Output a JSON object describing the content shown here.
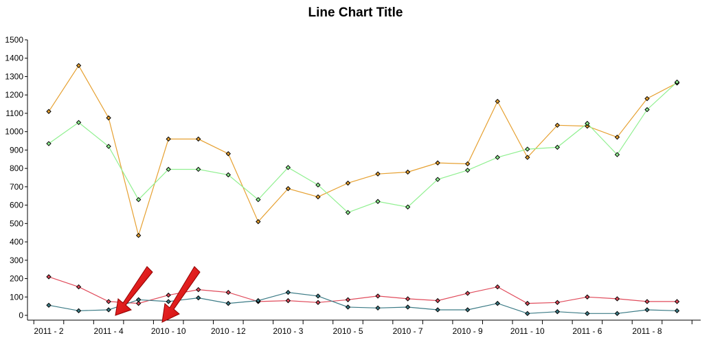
{
  "chart_data": {
    "type": "line",
    "title": "Line Chart Title",
    "xlabel": "",
    "ylabel": "",
    "ylim": [
      0,
      1500
    ],
    "yticks": [
      0,
      100,
      200,
      300,
      400,
      500,
      600,
      700,
      800,
      900,
      1000,
      1100,
      1200,
      1300,
      1400,
      1500
    ],
    "grid": false,
    "x": [
      "2011 - 2",
      "",
      "2011 - 4",
      "",
      "2010 - 10",
      "",
      "2010 - 12",
      "",
      "2010 - 3",
      "",
      "2010 - 5",
      "",
      "2010 - 7",
      "",
      "2010 - 9",
      "",
      "2011 - 10",
      "",
      "2011 - 6",
      "",
      "2011 - 8",
      ""
    ],
    "series": [
      {
        "color": "#e6a030",
        "values": [
          1110,
          1360,
          1075,
          435,
          960,
          960,
          880,
          510,
          690,
          645,
          720,
          770,
          780,
          830,
          825,
          1165,
          860,
          1035,
          1030,
          970,
          1180,
          1265
        ]
      },
      {
        "color": "#90f090",
        "values": [
          935,
          1050,
          920,
          630,
          795,
          795,
          765,
          630,
          805,
          710,
          560,
          620,
          590,
          740,
          790,
          860,
          905,
          915,
          1045,
          875,
          1120,
          1270
        ]
      },
      {
        "color": "#e04a5a",
        "values": [
          210,
          155,
          75,
          65,
          110,
          140,
          125,
          75,
          80,
          70,
          85,
          105,
          90,
          80,
          120,
          155,
          65,
          70,
          100,
          90,
          75,
          75
        ]
      },
      {
        "color": "#3a7a85",
        "values": [
          55,
          25,
          30,
          85,
          75,
          95,
          65,
          80,
          125,
          105,
          45,
          40,
          45,
          30,
          30,
          65,
          10,
          20,
          10,
          10,
          30,
          25
        ]
      }
    ],
    "annotations": [
      {
        "type": "arrow",
        "color": "#e00000"
      },
      {
        "type": "arrow",
        "color": "#e00000"
      }
    ]
  }
}
